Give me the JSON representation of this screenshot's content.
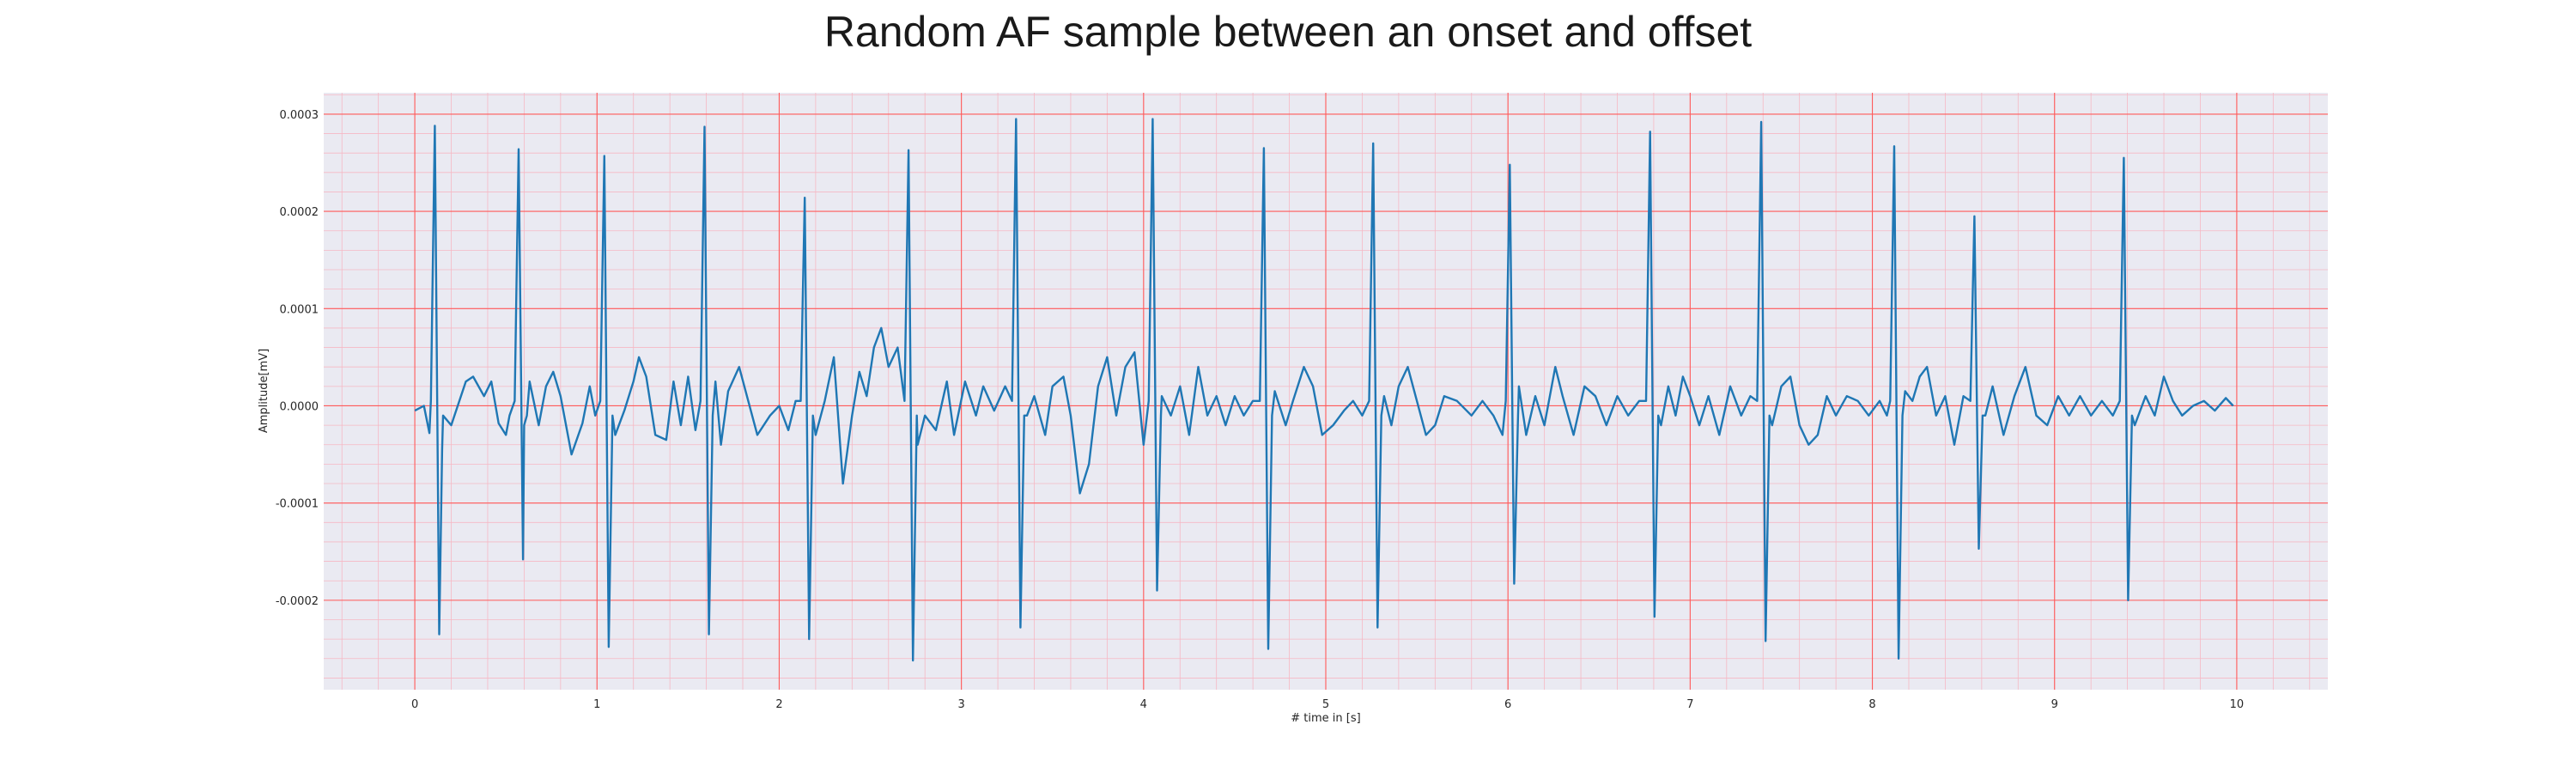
{
  "chart_data": {
    "type": "line",
    "title": "Random AF sample between an onset and offset",
    "xlabel": "# time in [s]",
    "ylabel": "Amplitude[mV]",
    "xlim": [
      -0.5,
      10.5
    ],
    "ylim": [
      -0.000292,
      0.000322
    ],
    "x_ticks": [
      0,
      1,
      2,
      3,
      4,
      5,
      6,
      7,
      8,
      9,
      10
    ],
    "x_tick_labels": [
      "0",
      "1",
      "2",
      "3",
      "4",
      "5",
      "6",
      "7",
      "8",
      "9",
      "10"
    ],
    "y_ticks": [
      -0.0002,
      -0.0001,
      0.0,
      0.0001,
      0.0002,
      0.0003
    ],
    "y_tick_labels": [
      "-0.0002",
      "-0.0001",
      "0.0000",
      "0.0001",
      "0.0002",
      "0.0003"
    ],
    "grid": true,
    "minor_grid": true,
    "background": "#eaeaf2",
    "major_grid_color": "#ff5a5a",
    "minor_grid_color": "#f6b8c4",
    "series_color": "#1f77b4",
    "qrs_beats": [
      {
        "t": 0.11,
        "r": 0.000288,
        "s": -0.000235
      },
      {
        "t": 0.57,
        "r": 0.000264,
        "s": -0.000158
      },
      {
        "t": 1.04,
        "r": 0.000257,
        "s": -0.000248
      },
      {
        "t": 1.59,
        "r": 0.000287,
        "s": -0.000235
      },
      {
        "t": 2.14,
        "r": 0.000214,
        "s": -0.00024
      },
      {
        "t": 2.71,
        "r": 0.000263,
        "s": -0.000262
      },
      {
        "t": 3.3,
        "r": 0.000295,
        "s": -0.000228
      },
      {
        "t": 4.05,
        "r": 0.000295,
        "s": -0.00019
      },
      {
        "t": 4.66,
        "r": 0.000265,
        "s": -0.00025
      },
      {
        "t": 5.26,
        "r": 0.00027,
        "s": -0.000228
      },
      {
        "t": 6.01,
        "r": 0.000248,
        "s": -0.000183
      },
      {
        "t": 6.78,
        "r": 0.000282,
        "s": -0.000217
      },
      {
        "t": 7.39,
        "r": 0.000292,
        "s": -0.000242
      },
      {
        "t": 8.12,
        "r": 0.000267,
        "s": -0.00026
      },
      {
        "t": 8.56,
        "r": 0.000195,
        "s": -0.000147
      },
      {
        "t": 9.38,
        "r": 0.000255,
        "s": -0.0002
      }
    ],
    "baseline_points": [
      [
        0.0,
        -5e-06
      ],
      [
        0.05,
        0.0
      ],
      [
        0.08,
        -2.8e-05
      ],
      [
        0.15,
        -4.5e-05
      ],
      [
        0.2,
        -2e-05
      ],
      [
        0.28,
        2.5e-05
      ],
      [
        0.32,
        3e-05
      ],
      [
        0.38,
        1e-05
      ],
      [
        0.42,
        2.5e-05
      ],
      [
        0.46,
        -1.8e-05
      ],
      [
        0.5,
        -3e-05
      ],
      [
        0.52,
        -1e-05
      ],
      [
        0.6,
        -2e-05
      ],
      [
        0.63,
        2.5e-05
      ],
      [
        0.68,
        -2e-05
      ],
      [
        0.72,
        2e-05
      ],
      [
        0.76,
        3.5e-05
      ],
      [
        0.8,
        1e-05
      ],
      [
        0.86,
        -5e-05
      ],
      [
        0.92,
        -1.8e-05
      ],
      [
        0.96,
        2e-05
      ],
      [
        0.99,
        -1e-05
      ],
      [
        1.1,
        -3e-05
      ],
      [
        1.15,
        -5e-06
      ],
      [
        1.2,
        2.5e-05
      ],
      [
        1.23,
        5e-05
      ],
      [
        1.27,
        3e-05
      ],
      [
        1.32,
        -3e-05
      ],
      [
        1.38,
        -3.5e-05
      ],
      [
        1.42,
        2.5e-05
      ],
      [
        1.46,
        -2e-05
      ],
      [
        1.5,
        3e-05
      ],
      [
        1.54,
        -2.5e-05
      ],
      [
        1.65,
        2.5e-05
      ],
      [
        1.68,
        -4e-05
      ],
      [
        1.72,
        1.5e-05
      ],
      [
        1.78,
        4e-05
      ],
      [
        1.83,
        5e-06
      ],
      [
        1.88,
        -3e-05
      ],
      [
        1.95,
        -1e-05
      ],
      [
        2.0,
        0.0
      ],
      [
        2.05,
        -2.5e-05
      ],
      [
        2.09,
        5e-06
      ],
      [
        2.2,
        -3e-05
      ],
      [
        2.25,
        5e-06
      ],
      [
        2.3,
        5e-05
      ],
      [
        2.35,
        -8e-05
      ],
      [
        2.4,
        -1e-05
      ],
      [
        2.44,
        3.5e-05
      ],
      [
        2.48,
        1e-05
      ],
      [
        2.52,
        6e-05
      ],
      [
        2.56,
        8e-05
      ],
      [
        2.6,
        4e-05
      ],
      [
        2.65,
        6e-05
      ],
      [
        2.76,
        -4e-05
      ],
      [
        2.8,
        -1e-05
      ],
      [
        2.86,
        -2.5e-05
      ],
      [
        2.92,
        2.5e-05
      ],
      [
        2.96,
        -3e-05
      ],
      [
        3.02,
        2.5e-05
      ],
      [
        3.08,
        -1e-05
      ],
      [
        3.12,
        2e-05
      ],
      [
        3.18,
        -5e-06
      ],
      [
        3.24,
        2e-05
      ],
      [
        3.36,
        -1e-05
      ],
      [
        3.4,
        1e-05
      ],
      [
        3.46,
        -3e-05
      ],
      [
        3.5,
        2e-05
      ],
      [
        3.56,
        3e-05
      ],
      [
        3.6,
        -1e-05
      ],
      [
        3.65,
        -9e-05
      ],
      [
        3.7,
        -6e-05
      ],
      [
        3.75,
        2e-05
      ],
      [
        3.8,
        5e-05
      ],
      [
        3.85,
        -1e-05
      ],
      [
        3.9,
        4e-05
      ],
      [
        3.95,
        5.5e-05
      ],
      [
        4.0,
        -4e-05
      ],
      [
        4.1,
        1e-05
      ],
      [
        4.15,
        -1e-05
      ],
      [
        4.2,
        2e-05
      ],
      [
        4.25,
        -3e-05
      ],
      [
        4.3,
        4e-05
      ],
      [
        4.35,
        -1e-05
      ],
      [
        4.4,
        1e-05
      ],
      [
        4.45,
        -2e-05
      ],
      [
        4.5,
        1e-05
      ],
      [
        4.55,
        -1e-05
      ],
      [
        4.6,
        5e-06
      ],
      [
        4.72,
        1.5e-05
      ],
      [
        4.78,
        -2e-05
      ],
      [
        4.82,
        5e-06
      ],
      [
        4.88,
        4e-05
      ],
      [
        4.93,
        2e-05
      ],
      [
        4.98,
        -3e-05
      ],
      [
        5.04,
        -2e-05
      ],
      [
        5.1,
        -5e-06
      ],
      [
        5.15,
        5e-06
      ],
      [
        5.2,
        -1e-05
      ],
      [
        5.32,
        1e-05
      ],
      [
        5.36,
        -2e-05
      ],
      [
        5.4,
        2e-05
      ],
      [
        5.45,
        4e-05
      ],
      [
        5.5,
        5e-06
      ],
      [
        5.55,
        -3e-05
      ],
      [
        5.6,
        -2e-05
      ],
      [
        5.65,
        1e-05
      ],
      [
        5.72,
        5e-06
      ],
      [
        5.8,
        -1e-05
      ],
      [
        5.86,
        5e-06
      ],
      [
        5.92,
        -1e-05
      ],
      [
        5.97,
        -3e-05
      ],
      [
        6.06,
        2e-05
      ],
      [
        6.1,
        -3e-05
      ],
      [
        6.15,
        1e-05
      ],
      [
        6.2,
        -2e-05
      ],
      [
        6.26,
        4e-05
      ],
      [
        6.3,
        1e-05
      ],
      [
        6.36,
        -3e-05
      ],
      [
        6.42,
        2e-05
      ],
      [
        6.48,
        1e-05
      ],
      [
        6.54,
        -2e-05
      ],
      [
        6.6,
        1e-05
      ],
      [
        6.66,
        -1e-05
      ],
      [
        6.72,
        5e-06
      ],
      [
        6.84,
        -2e-05
      ],
      [
        6.88,
        2e-05
      ],
      [
        6.92,
        -1e-05
      ],
      [
        6.96,
        3e-05
      ],
      [
        7.0,
        1e-05
      ],
      [
        7.05,
        -2e-05
      ],
      [
        7.1,
        1e-05
      ],
      [
        7.16,
        -3e-05
      ],
      [
        7.22,
        2e-05
      ],
      [
        7.28,
        -1e-05
      ],
      [
        7.33,
        1e-05
      ],
      [
        7.45,
        -2e-05
      ],
      [
        7.5,
        2e-05
      ],
      [
        7.55,
        3e-05
      ],
      [
        7.6,
        -2e-05
      ],
      [
        7.65,
        -4e-05
      ],
      [
        7.7,
        -3e-05
      ],
      [
        7.75,
        1e-05
      ],
      [
        7.8,
        -1e-05
      ],
      [
        7.86,
        1e-05
      ],
      [
        7.92,
        5e-06
      ],
      [
        7.98,
        -1e-05
      ],
      [
        8.04,
        5e-06
      ],
      [
        8.08,
        -1e-05
      ],
      [
        8.18,
        1.5e-05
      ],
      [
        8.22,
        5e-06
      ],
      [
        8.26,
        3e-05
      ],
      [
        8.3,
        4e-05
      ],
      [
        8.35,
        -1e-05
      ],
      [
        8.4,
        1e-05
      ],
      [
        8.45,
        -4e-05
      ],
      [
        8.5,
        1e-05
      ],
      [
        8.62,
        -1e-05
      ],
      [
        8.66,
        2e-05
      ],
      [
        8.72,
        -3e-05
      ],
      [
        8.78,
        1e-05
      ],
      [
        8.84,
        4e-05
      ],
      [
        8.9,
        -1e-05
      ],
      [
        8.96,
        -2e-05
      ],
      [
        9.02,
        1e-05
      ],
      [
        9.08,
        -1e-05
      ],
      [
        9.14,
        1e-05
      ],
      [
        9.2,
        -1e-05
      ],
      [
        9.26,
        5e-06
      ],
      [
        9.32,
        -1e-05
      ],
      [
        9.44,
        -2e-05
      ],
      [
        9.5,
        1e-05
      ],
      [
        9.55,
        -1e-05
      ],
      [
        9.6,
        3e-05
      ],
      [
        9.65,
        5e-06
      ],
      [
        9.7,
        -1e-05
      ],
      [
        9.76,
        0.0
      ],
      [
        9.82,
        5e-06
      ],
      [
        9.88,
        -5e-06
      ],
      [
        9.94,
        8e-06
      ],
      [
        9.98,
        0.0
      ]
    ]
  }
}
